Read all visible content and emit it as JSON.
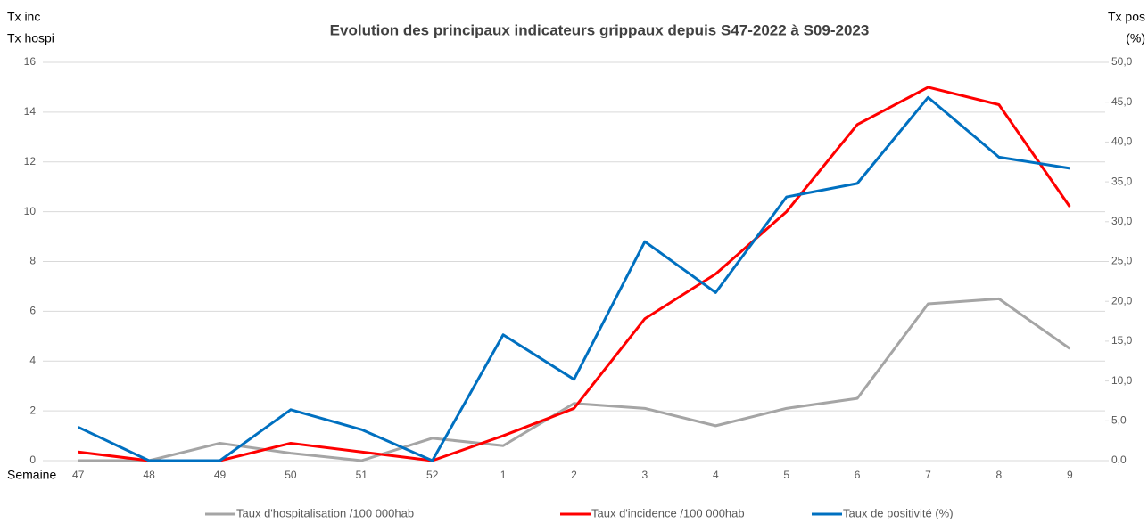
{
  "chart_data": {
    "type": "line",
    "title": "Evolution des principaux indicateurs grippaux depuis S47-2022 à S09-2023",
    "ylabel": [
      "Tx inc",
      "Tx hospi"
    ],
    "y2label": [
      "Tx pos",
      "(%)"
    ],
    "xlabel": "Semaine",
    "categories": [
      "47",
      "48",
      "49",
      "50",
      "51",
      "52",
      "1",
      "2",
      "3",
      "4",
      "5",
      "6",
      "7",
      "8",
      "9"
    ],
    "ylim": [
      0,
      16
    ],
    "yticks": [
      0,
      2,
      4,
      6,
      8,
      10,
      12,
      14,
      16
    ],
    "y2lim": [
      0,
      50
    ],
    "y2ticks": [
      {
        "value": 0,
        "label": "0,0"
      },
      {
        "value": 5,
        "label": "5,0"
      },
      {
        "value": 10,
        "label": "10,0"
      },
      {
        "value": 15,
        "label": "15,0"
      },
      {
        "value": 20,
        "label": "20,0"
      },
      {
        "value": 25,
        "label": "25,0"
      },
      {
        "value": 30,
        "label": "30,0"
      },
      {
        "value": 35,
        "label": "35,0"
      },
      {
        "value": 40,
        "label": "40,0"
      },
      {
        "value": 45,
        "label": "45,0"
      },
      {
        "value": 50,
        "label": "50,0"
      }
    ],
    "grid": true,
    "legend": "bottom",
    "series": [
      {
        "name": "Taux d'hospitalisation /100 000hab",
        "color": "#a5a5a5",
        "values": [
          0,
          0,
          0.7,
          0.3,
          0,
          0.9,
          0.6,
          2.3,
          2.1,
          1.4,
          2.1,
          2.5,
          6.3,
          6.5,
          4.5
        ]
      },
      {
        "name": "Taux d'incidence /100 000hab",
        "color": "#ff0000",
        "values": [
          0.35,
          0,
          0,
          0.7,
          0.35,
          0,
          1.0,
          2.1,
          5.7,
          7.5,
          10.0,
          13.5,
          15.0,
          14.3,
          10.2
        ]
      },
      {
        "name": "Taux de positivité (%)",
        "color": "#0070c0",
        "axis": "y2",
        "values": [
          4.2,
          0,
          0,
          6.4,
          3.9,
          0,
          15.8,
          10.2,
          27.5,
          21.1,
          33.1,
          34.8,
          45.6,
          38.1,
          36.7
        ]
      }
    ]
  }
}
